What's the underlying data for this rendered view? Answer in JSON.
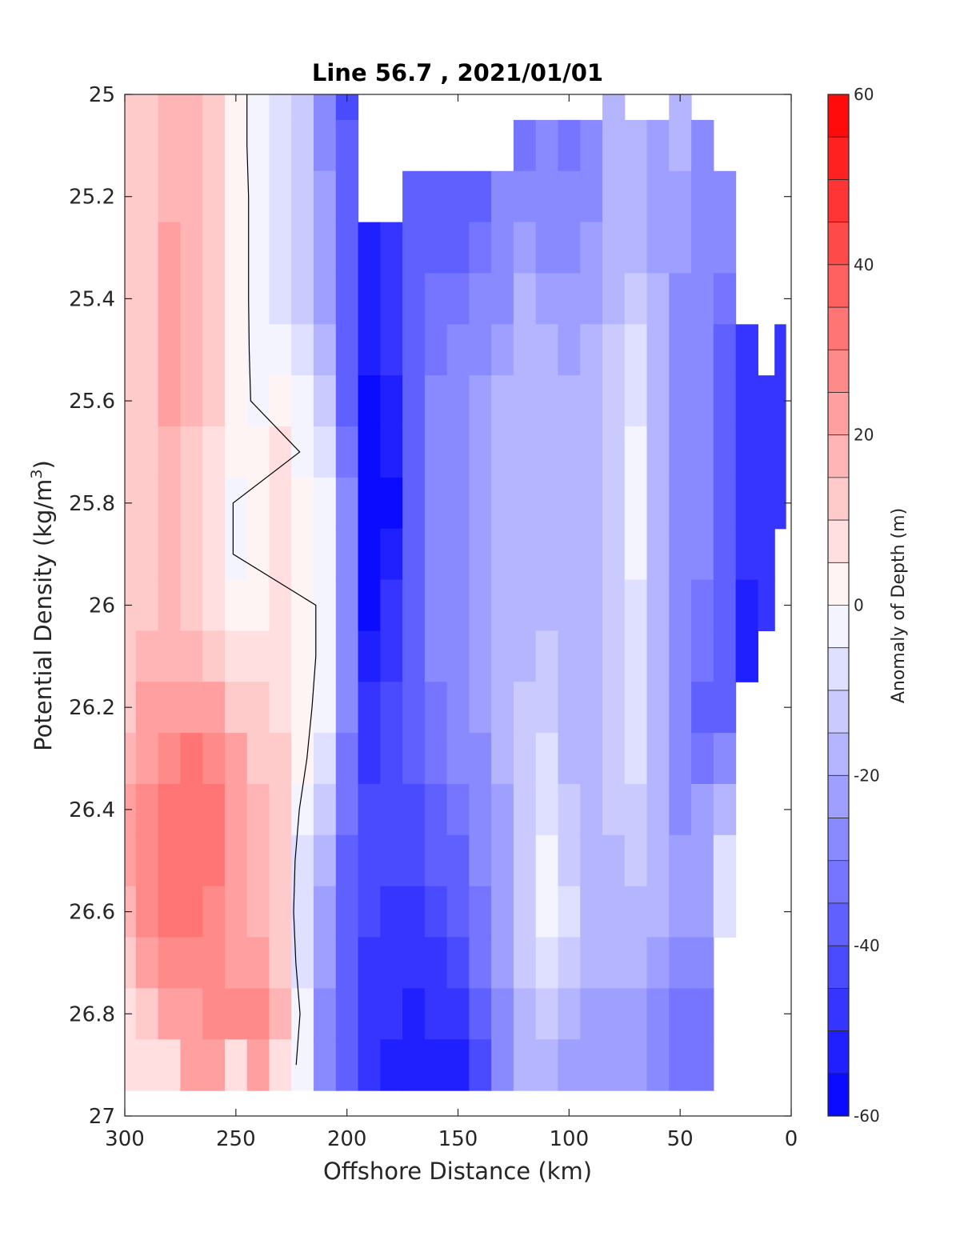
{
  "chart_data": {
    "type": "heatmap",
    "title": "Line 56.7 , 2021/01/01",
    "xlabel": "Offshore Distance (km)",
    "ylabel_main": "Potential Density (kg/m",
    "ylabel_sup": "3",
    "ylabel_close": ")",
    "xlim": [
      300,
      0
    ],
    "ylim": [
      25,
      27
    ],
    "x_reversed": true,
    "y_reversed": true,
    "x_ticks": [
      300,
      250,
      200,
      150,
      100,
      50,
      0
    ],
    "y_ticks": [
      25,
      25.2,
      25.4,
      25.6,
      25.8,
      26,
      26.2,
      26.4,
      26.6,
      26.8,
      27
    ],
    "colorbar": {
      "label": "Anomaly of Depth (m)",
      "range": [
        -60,
        60
      ],
      "ticks": [
        60,
        40,
        20,
        0,
        -20,
        -40,
        -60
      ],
      "levels": [
        -60,
        -55,
        -50,
        -45,
        -40,
        -35,
        -30,
        -25,
        -20,
        -15,
        -10,
        -5,
        0,
        5,
        10,
        15,
        20,
        25,
        30,
        35,
        40,
        45,
        50,
        55,
        60
      ],
      "colormap": "blue-white-red"
    },
    "x_grid": [
      300,
      290,
      280,
      270,
      260,
      250,
      240,
      230,
      220,
      210,
      200,
      190,
      180,
      170,
      160,
      150,
      140,
      130,
      120,
      110,
      100,
      90,
      80,
      70,
      60,
      50,
      40,
      30,
      20,
      10,
      5
    ],
    "y_grid": [
      25,
      25.1,
      25.2,
      25.3,
      25.4,
      25.5,
      25.6,
      25.7,
      25.8,
      25.9,
      26,
      26.1,
      26.2,
      26.3,
      26.4,
      26.5,
      26.6,
      26.7,
      26.8,
      26.9
    ],
    "profiles": [
      {
        "x": 300,
        "values": [
          10,
          10,
          10,
          10,
          10,
          10,
          10,
          10,
          10,
          10,
          11,
          12,
          14,
          18,
          22,
          22,
          18,
          12,
          8,
          5
        ],
        "y_start": 25
      },
      {
        "x": 290,
        "values": [
          14,
          14,
          14,
          14,
          14,
          14,
          14,
          14,
          14,
          14,
          14,
          16,
          20,
          24,
          27,
          28,
          25,
          22,
          12,
          6
        ],
        "y_start": 25
      },
      {
        "x": 280,
        "values": [
          18,
          16,
          18,
          20,
          20,
          20,
          20,
          18,
          16,
          16,
          16,
          18,
          22,
          28,
          32,
          33,
          30,
          26,
          22,
          8
        ],
        "y_start": 25
      },
      {
        "x": 270,
        "values": [
          15,
          15,
          16,
          18,
          18,
          17,
          16,
          14,
          12,
          12,
          14,
          18,
          24,
          30,
          34,
          34,
          30,
          26,
          22,
          20
        ],
        "y_start": 25
      },
      {
        "x": 260,
        "values": [
          12,
          12,
          12,
          12,
          12,
          11,
          10,
          8,
          7,
          7,
          9,
          13,
          20,
          27,
          32,
          32,
          28,
          25,
          25,
          20
        ],
        "y_start": 25
      },
      {
        "x": 250,
        "values": [
          4,
          4,
          4,
          4,
          4,
          3,
          2,
          0,
          -1,
          -1,
          1,
          5,
          12,
          20,
          24,
          24,
          22,
          24,
          26,
          5
        ],
        "y_start": 25
      },
      {
        "x": 240,
        "values": [
          -4,
          -4,
          -3,
          -3,
          -3,
          -2,
          -1,
          0,
          1,
          1,
          2,
          5,
          10,
          14,
          18,
          18,
          18,
          20,
          26,
          20
        ],
        "y_start": 25
      },
      {
        "x": 230,
        "values": [
          -8,
          -8,
          -7,
          -7,
          -6,
          -3,
          3,
          7,
          8,
          8,
          8,
          8,
          9,
          10,
          12,
          12,
          12,
          14,
          16,
          5
        ],
        "y_start": 25
      },
      {
        "x": 220,
        "values": [
          -14,
          -14,
          -13,
          -13,
          -12,
          -9,
          -5,
          -1,
          2,
          3,
          3,
          3,
          3,
          2,
          -2,
          -6,
          -8,
          -6,
          -2,
          -2
        ],
        "y_start": 25
      },
      {
        "x": 210,
        "values": [
          -26,
          -26,
          -25,
          -25,
          -24,
          -20,
          -14,
          -8,
          -4,
          -2,
          -2,
          -2,
          -4,
          -8,
          -14,
          -18,
          -22,
          -24,
          -26,
          -26
        ],
        "y_start": 25
      },
      {
        "x": 200,
        "values": [
          -45,
          -40,
          -40,
          -40,
          -40,
          -38,
          -36,
          -34,
          -30,
          -28,
          -28,
          -28,
          -30,
          -32,
          -34,
          -36,
          -36,
          -38,
          -40,
          -40
        ],
        "y_start": 25
      },
      {
        "x": 190,
        "values": [
          null,
          null,
          null,
          -52,
          -52,
          -54,
          -56,
          -58,
          -60,
          -58,
          -56,
          -52,
          -48,
          -46,
          -44,
          -44,
          -44,
          -46,
          -48,
          -50
        ],
        "y_start": 25
      },
      {
        "x": 180,
        "values": [
          null,
          null,
          null,
          -48,
          -48,
          -50,
          -52,
          -54,
          -56,
          -54,
          -50,
          -46,
          -44,
          -42,
          -42,
          -44,
          -46,
          -48,
          -50,
          -52
        ],
        "y_start": 25
      },
      {
        "x": 170,
        "values": [
          null,
          null,
          -36,
          -36,
          -36,
          -38,
          -38,
          -38,
          -38,
          -38,
          -38,
          -38,
          -38,
          -40,
          -42,
          -44,
          -46,
          -50,
          -52,
          -54
        ],
        "y_start": 25
      },
      {
        "x": 160,
        "values": [
          null,
          null,
          -38,
          -36,
          -34,
          -32,
          -30,
          -30,
          -30,
          -30,
          -30,
          -30,
          -32,
          -34,
          -38,
          -40,
          -42,
          -46,
          -50,
          -54
        ],
        "y_start": 25
      },
      {
        "x": 150,
        "values": [
          null,
          null,
          -40,
          -36,
          -32,
          -28,
          -26,
          -26,
          -26,
          -26,
          -26,
          -26,
          -28,
          -30,
          -34,
          -36,
          -38,
          -42,
          -48,
          -52
        ],
        "y_start": 25
      },
      {
        "x": 140,
        "values": [
          null,
          null,
          -36,
          -32,
          -28,
          -26,
          -24,
          -24,
          -24,
          -24,
          -24,
          -24,
          -24,
          -26,
          -28,
          -30,
          -32,
          -34,
          -38,
          -42
        ],
        "y_start": 25
      },
      {
        "x": 130,
        "values": [
          null,
          null,
          -30,
          -28,
          -26,
          -22,
          -20,
          -20,
          -20,
          -20,
          -20,
          -20,
          -20,
          -20,
          -22,
          -24,
          -24,
          -24,
          -26,
          -30
        ],
        "y_start": 25
      },
      {
        "x": 120,
        "values": [
          null,
          -34,
          -28,
          -22,
          -18,
          -16,
          -16,
          -16,
          -16,
          -18,
          -18,
          -16,
          -14,
          -12,
          -12,
          -12,
          -14,
          -14,
          -16,
          -20
        ],
        "y_start": 25
      },
      {
        "x": 110,
        "values": [
          null,
          -28,
          -30,
          -26,
          -22,
          -18,
          -16,
          -16,
          -16,
          -16,
          -16,
          -14,
          -12,
          -10,
          -8,
          -4,
          -2,
          -6,
          -14,
          -20
        ],
        "y_start": 25
      },
      {
        "x": 100,
        "values": [
          null,
          -32,
          -30,
          -28,
          -24,
          -22,
          -20,
          -20,
          -20,
          -20,
          -20,
          -18,
          -18,
          -16,
          -14,
          -12,
          -10,
          -12,
          -18,
          -22
        ],
        "y_start": 25
      },
      {
        "x": 90,
        "values": [
          null,
          -28,
          -26,
          -24,
          -22,
          -20,
          -18,
          -18,
          -18,
          -18,
          -18,
          -18,
          -18,
          -18,
          -18,
          -18,
          -18,
          -20,
          -22,
          -24
        ],
        "y_start": 25
      },
      {
        "x": 80,
        "values": [
          -16,
          -20,
          -20,
          -18,
          -16,
          -14,
          -14,
          -14,
          -14,
          -14,
          -14,
          -14,
          -14,
          -14,
          -14,
          -16,
          -18,
          -20,
          -22,
          -24
        ],
        "y_start": 25
      },
      {
        "x": 70,
        "values": [
          null,
          -16,
          -18,
          -16,
          -14,
          -10,
          -6,
          -5,
          -4,
          -5,
          -6,
          -6,
          -7,
          -9,
          -12,
          -14,
          -16,
          -20,
          -22,
          -24
        ],
        "y_start": 25
      },
      {
        "x": 60,
        "values": [
          null,
          -24,
          -22,
          -22,
          -20,
          -18,
          -16,
          -16,
          -16,
          -16,
          -16,
          -16,
          -18,
          -18,
          -18,
          -18,
          -20,
          -24,
          -28,
          -30
        ],
        "y_start": 25
      },
      {
        "x": 50,
        "values": [
          -16,
          -20,
          -22,
          -24,
          -26,
          -28,
          -26,
          -26,
          -26,
          -26,
          -26,
          -26,
          -28,
          -28,
          -26,
          -24,
          -24,
          -28,
          -32,
          -32
        ],
        "y_start": 25
      },
      {
        "x": 40,
        "values": [
          null,
          -26,
          -26,
          -28,
          -30,
          -30,
          -28,
          -28,
          -30,
          -30,
          -32,
          -34,
          -36,
          -32,
          -24,
          -22,
          -24,
          -30,
          -32,
          -32
        ],
        "y_start": 25
      },
      {
        "x": 30,
        "values": [
          null,
          null,
          -30,
          -30,
          -34,
          -36,
          -36,
          -38,
          -38,
          -40,
          -40,
          -40,
          -38,
          -30,
          -16,
          -6,
          -10,
          null,
          null,
          null
        ],
        "y_start": 25
      },
      {
        "x": 20,
        "values": [
          null,
          null,
          null,
          null,
          null,
          -46,
          -48,
          -48,
          -48,
          -50,
          -52,
          -54,
          null,
          null,
          null,
          null,
          null,
          null,
          null,
          null
        ],
        "y_start": 25
      },
      {
        "x": 10,
        "values": [
          null,
          null,
          null,
          null,
          null,
          null,
          -50,
          -50,
          -50,
          -50,
          -50,
          null,
          null,
          null,
          null,
          null,
          null,
          null,
          null,
          null
        ],
        "y_start": 25
      },
      {
        "x": 5,
        "values": [
          null,
          null,
          null,
          null,
          null,
          -46,
          -46,
          -46,
          -46,
          null,
          null,
          null,
          null,
          null,
          null,
          null,
          null,
          null,
          null,
          null
        ],
        "y_start": 25
      }
    ]
  }
}
